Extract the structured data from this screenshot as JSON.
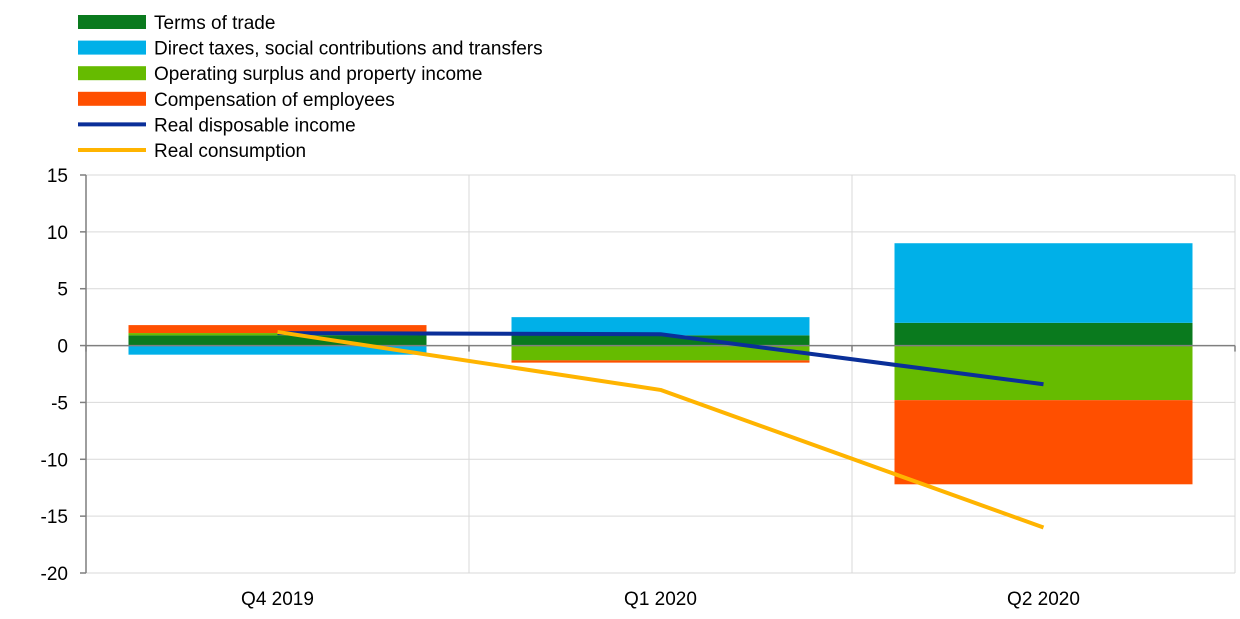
{
  "chart_data": {
    "type": "bar",
    "stacked": true,
    "categories": [
      "Q4 2019",
      "Q1 2020",
      "Q2 2020"
    ],
    "series": [
      {
        "name": "Terms of trade",
        "kind": "bar",
        "color": "#0a7a1e",
        "values": [
          0.9,
          0.9,
          2.0
        ]
      },
      {
        "name": "Direct taxes, social contributions and transfers",
        "kind": "bar",
        "color": "#00b0e8",
        "values": [
          -0.8,
          1.6,
          7.0
        ]
      },
      {
        "name": "Operating surplus and property income",
        "kind": "bar",
        "color": "#66bb00",
        "values": [
          0.2,
          -1.3,
          -4.8
        ]
      },
      {
        "name": "Compensation of employees",
        "kind": "bar",
        "color": "#ff4f00",
        "values": [
          0.7,
          -0.2,
          -7.4
        ]
      },
      {
        "name": "Real disposable income",
        "kind": "line",
        "color": "#0a2f99",
        "values": [
          1.1,
          1.0,
          -3.4
        ]
      },
      {
        "name": "Real consumption",
        "kind": "line",
        "color": "#ffb400",
        "values": [
          1.2,
          -3.9,
          -16.0
        ]
      }
    ],
    "ylim": [
      -20,
      15
    ],
    "yticks": [
      15,
      10,
      5,
      0,
      -5,
      -10,
      -15,
      -20
    ],
    "grid": true,
    "legend": "top-left"
  }
}
